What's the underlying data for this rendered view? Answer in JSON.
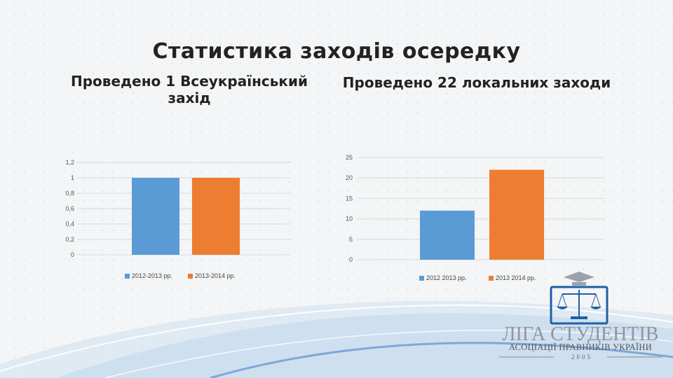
{
  "slide": {
    "title": "Статистика заходів осередку",
    "subtitle_left": "Проведено 1 Всеукраїнський захід",
    "subtitle_right": "Проведено 22 локальних заходи"
  },
  "logo": {
    "title": "ЛІГА СТУДЕНТІВ",
    "subtitle": "АСОЦІАЦІЇ ПРАВНИКІВ УКРАЇНИ",
    "year": "2005"
  },
  "colors": {
    "blue": "#5b9bd5",
    "orange": "#ed7d31"
  },
  "chart_data": [
    {
      "type": "bar",
      "categories": [
        "2012-2013 рр.",
        "2013-2014 рр."
      ],
      "values": [
        1,
        1
      ],
      "ylim": [
        0,
        1.2
      ],
      "yticks": [
        "0",
        "0,2",
        "0,4",
        "0,6",
        "0,8",
        "1",
        "1,2"
      ],
      "grid": true,
      "legend": "bottom"
    },
    {
      "type": "bar",
      "categories": [
        "2012 2013 рр.",
        "2013 2014 рр."
      ],
      "values": [
        12,
        22
      ],
      "ylim": [
        0,
        25
      ],
      "yticks": [
        "0",
        "5",
        "10",
        "15",
        "20",
        "25"
      ],
      "grid": true,
      "legend": "bottom"
    }
  ]
}
